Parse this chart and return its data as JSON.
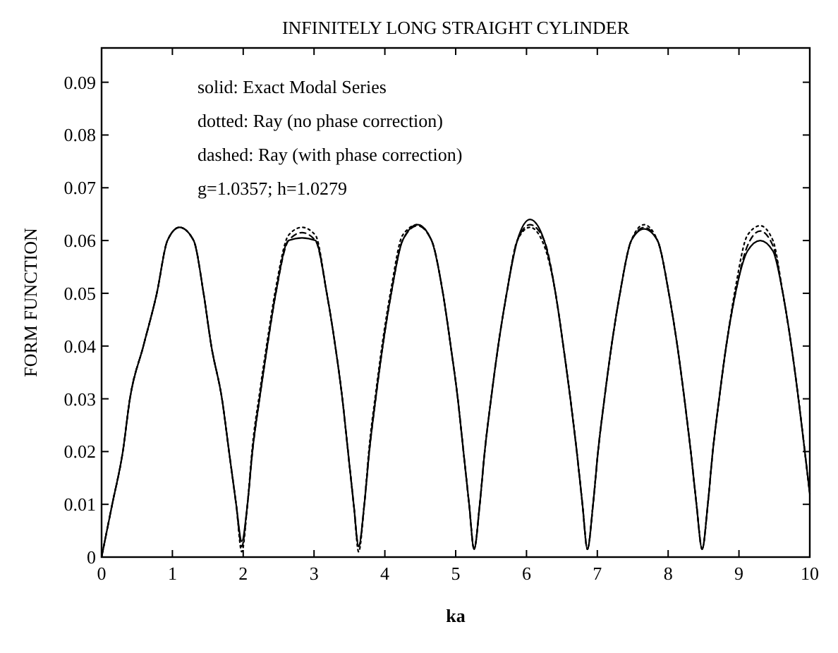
{
  "chart_data": {
    "type": "line",
    "title": "INFINITELY LONG STRAIGHT CYLINDER",
    "xlabel": "ka",
    "ylabel": "FORM  FUNCTION",
    "annotations": [
      "solid:  Exact Modal Series",
      "dotted:  Ray (no phase correction)",
      "dashed:  Ray (with phase correction)",
      "g=1.0357;  h=1.0279"
    ],
    "x": [
      0,
      0.15,
      0.3,
      0.4,
      0.59,
      0.78,
      0.93,
      1.1,
      1.3,
      1.44,
      1.55,
      1.7,
      1.8,
      1.9,
      1.98,
      2.06,
      2.13,
      2.23,
      2.34,
      2.46,
      2.64,
      2.83,
      3.02,
      3.18,
      3.3,
      3.4,
      3.48,
      3.56,
      3.63,
      3.71,
      3.78,
      3.87,
      3.97,
      4.09,
      4.25,
      4.46,
      4.66,
      4.82,
      4.93,
      5.03,
      5.11,
      5.19,
      5.26,
      5.34,
      5.41,
      5.5,
      5.6,
      5.72,
      5.87,
      6.05,
      6.25,
      6.41,
      6.52,
      6.62,
      6.71,
      6.79,
      6.86,
      6.94,
      7.01,
      7.1,
      7.2,
      7.32,
      7.48,
      7.66,
      7.85,
      8.01,
      8.13,
      8.23,
      8.32,
      8.4,
      8.48,
      8.56,
      8.63,
      8.72,
      8.82,
      8.95,
      9.12,
      9.3,
      9.48,
      9.62,
      9.74,
      9.84,
      9.93,
      10
    ],
    "series": [
      {
        "color": "#000000",
        "line_style": "solid",
        "values": [
          0,
          0.01,
          0.02,
          0.03,
          0.04,
          0.05,
          0.06,
          0.0625,
          0.06,
          0.05,
          0.04,
          0.03,
          0.02,
          0.01,
          0.003,
          0.01,
          0.02,
          0.03,
          0.04,
          0.05,
          0.06,
          0.0605,
          0.06,
          0.05,
          0.04,
          0.03,
          0.02,
          0.01,
          0.002,
          0.01,
          0.02,
          0.03,
          0.04,
          0.05,
          0.06,
          0.063,
          0.06,
          0.05,
          0.04,
          0.03,
          0.02,
          0.01,
          0.0015,
          0.01,
          0.02,
          0.03,
          0.04,
          0.05,
          0.06,
          0.064,
          0.06,
          0.05,
          0.04,
          0.03,
          0.02,
          0.01,
          0.0015,
          0.01,
          0.02,
          0.03,
          0.04,
          0.05,
          0.06,
          0.0622,
          0.06,
          0.05,
          0.04,
          0.03,
          0.02,
          0.01,
          0.0015,
          0.01,
          0.02,
          0.03,
          0.04,
          0.05,
          0.058,
          0.06,
          0.058,
          0.05,
          0.04,
          0.03,
          0.02,
          0.012
        ]
      },
      {
        "color": "#000000",
        "line_style": "dotted",
        "values": [
          0,
          0.01,
          0.02,
          0.03,
          0.04,
          0.05,
          0.06,
          0.0625,
          0.06,
          0.05,
          0.04,
          0.03,
          0.02,
          0.01,
          0.001,
          0.01,
          0.021,
          0.031,
          0.041,
          0.051,
          0.061,
          0.0625,
          0.061,
          0.05,
          0.04,
          0.03,
          0.02,
          0.01,
          0.001,
          0.01,
          0.021,
          0.031,
          0.041,
          0.051,
          0.061,
          0.063,
          0.06,
          0.05,
          0.04,
          0.03,
          0.02,
          0.01,
          0.0015,
          0.01,
          0.02,
          0.03,
          0.04,
          0.05,
          0.06,
          0.0625,
          0.059,
          0.05,
          0.04,
          0.03,
          0.02,
          0.01,
          0.0015,
          0.01,
          0.02,
          0.03,
          0.04,
          0.05,
          0.06,
          0.063,
          0.06,
          0.05,
          0.04,
          0.03,
          0.02,
          0.01,
          0.0015,
          0.01,
          0.02,
          0.03,
          0.04,
          0.051,
          0.061,
          0.0628,
          0.06,
          0.05,
          0.04,
          0.03,
          0.02,
          0.012
        ]
      },
      {
        "color": "#000000",
        "line_style": "dashed",
        "values": [
          0,
          0.01,
          0.02,
          0.03,
          0.04,
          0.05,
          0.06,
          0.0625,
          0.06,
          0.05,
          0.04,
          0.03,
          0.02,
          0.01,
          0.002,
          0.01,
          0.02,
          0.03,
          0.04,
          0.05,
          0.06,
          0.0615,
          0.06,
          0.05,
          0.04,
          0.03,
          0.02,
          0.01,
          0.002,
          0.01,
          0.02,
          0.03,
          0.04,
          0.05,
          0.06,
          0.0628,
          0.06,
          0.05,
          0.04,
          0.03,
          0.02,
          0.01,
          0.0015,
          0.01,
          0.02,
          0.03,
          0.04,
          0.05,
          0.06,
          0.063,
          0.06,
          0.05,
          0.04,
          0.03,
          0.02,
          0.01,
          0.0015,
          0.01,
          0.02,
          0.03,
          0.04,
          0.05,
          0.06,
          0.0625,
          0.06,
          0.05,
          0.04,
          0.03,
          0.02,
          0.01,
          0.0015,
          0.01,
          0.02,
          0.03,
          0.04,
          0.05,
          0.059,
          0.0618,
          0.059,
          0.05,
          0.04,
          0.03,
          0.02,
          0.012
        ]
      }
    ],
    "xlim": [
      0,
      10
    ],
    "xticks": [
      0,
      1,
      2,
      3,
      4,
      5,
      6,
      7,
      8,
      9,
      10
    ],
    "ylim": [
      0,
      0.0965
    ],
    "yticks": [
      0,
      0.01,
      0.02,
      0.03,
      0.04,
      0.05,
      0.06,
      0.07,
      0.08,
      0.09
    ],
    "grid": false,
    "marker": "none"
  }
}
